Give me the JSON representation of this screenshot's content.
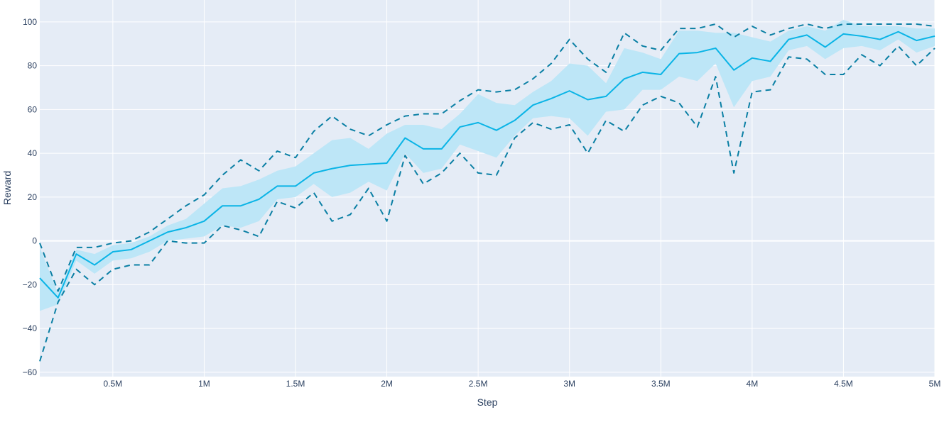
{
  "chart_data": {
    "type": "line",
    "title": "",
    "xlabel": "Step",
    "ylabel": "Reward",
    "xlim": [
      100000,
      5000000
    ],
    "ylim": [
      -62,
      110
    ],
    "grid": true,
    "x_ticks": [
      {
        "value": 500000,
        "label": "0.5M"
      },
      {
        "value": 1000000,
        "label": "1M"
      },
      {
        "value": 1500000,
        "label": "1.5M"
      },
      {
        "value": 2000000,
        "label": "2M"
      },
      {
        "value": 2500000,
        "label": "2.5M"
      },
      {
        "value": 3000000,
        "label": "3M"
      },
      {
        "value": 3500000,
        "label": "3.5M"
      },
      {
        "value": 4000000,
        "label": "4M"
      },
      {
        "value": 4500000,
        "label": "4.5M"
      },
      {
        "value": 5000000,
        "label": "5M"
      }
    ],
    "y_ticks": [
      {
        "value": 100,
        "label": "100"
      },
      {
        "value": 80,
        "label": "80"
      },
      {
        "value": 60,
        "label": "60"
      },
      {
        "value": 40,
        "label": "40"
      },
      {
        "value": 20,
        "label": "20"
      },
      {
        "value": 0,
        "label": "0"
      },
      {
        "value": -20,
        "label": "−20"
      },
      {
        "value": -40,
        "label": "−40"
      },
      {
        "value": -60,
        "label": "−60"
      }
    ],
    "x": [
      100000,
      200000,
      300000,
      400000,
      500000,
      600000,
      700000,
      800000,
      900000,
      1000000,
      1100000,
      1200000,
      1300000,
      1400000,
      1500000,
      1600000,
      1700000,
      1800000,
      1900000,
      2000000,
      2100000,
      2200000,
      2300000,
      2400000,
      2500000,
      2600000,
      2700000,
      2800000,
      2900000,
      3000000,
      3100000,
      3200000,
      3300000,
      3400000,
      3500000,
      3600000,
      3700000,
      3800000,
      3900000,
      4000000,
      4100000,
      4200000,
      4300000,
      4400000,
      4500000,
      4600000,
      4700000,
      4800000,
      4900000,
      5000000
    ],
    "series": [
      {
        "role": "mean",
        "style": "solid",
        "color": "#0ab4e6",
        "values": [
          -17,
          -26,
          -6,
          -11,
          -5,
          -4,
          0,
          4,
          6,
          9,
          16,
          16,
          19,
          25,
          25,
          31,
          33,
          34.5,
          35,
          35.5,
          47,
          42,
          42,
          52,
          54,
          50.5,
          55,
          62,
          65,
          68.5,
          64.5,
          66,
          74,
          77,
          76,
          85.5,
          86,
          88,
          78,
          83.5,
          82,
          92,
          94,
          88.5,
          94.5,
          93.5,
          92,
          95.5,
          91.5,
          93.5
        ]
      },
      {
        "role": "max",
        "style": "dash",
        "color": "#0a7fa4",
        "values": [
          -1,
          -23,
          -3,
          -3,
          -1,
          0,
          4,
          10,
          16,
          21,
          30,
          37,
          32,
          41,
          38,
          50,
          57,
          51,
          48,
          53,
          57,
          58,
          58,
          64,
          69,
          68,
          69,
          74,
          81,
          92,
          83,
          77,
          95,
          89,
          87,
          97,
          97,
          99,
          93,
          98,
          94,
          97,
          99,
          97,
          99,
          99,
          99,
          99,
          99,
          98
        ]
      },
      {
        "role": "min",
        "style": "dash",
        "color": "#0a7fa4",
        "values": [
          -55,
          -28,
          -13,
          -20,
          -13,
          -11,
          -11,
          0,
          -1,
          -1,
          7,
          5,
          2,
          18,
          15,
          22,
          9,
          12,
          24,
          9,
          39,
          26,
          31,
          40,
          31,
          30,
          47,
          54,
          51,
          53,
          40,
          55,
          50,
          62,
          66,
          63,
          52,
          75,
          31,
          68,
          69,
          84,
          83,
          76,
          76,
          85,
          80,
          89,
          80,
          88
        ]
      },
      {
        "role": "band-upper",
        "style": "fill",
        "color": "#bde6f7",
        "values": [
          -3,
          -24,
          -4,
          -6,
          -2,
          -1,
          2,
          7,
          10,
          17,
          24,
          25,
          28,
          32,
          34,
          40,
          46,
          47,
          42,
          49,
          53,
          53,
          51,
          58,
          67,
          63,
          62,
          68,
          73,
          81,
          80,
          72,
          88,
          86,
          83,
          96,
          96,
          95,
          95,
          93,
          91,
          96,
          98,
          96,
          101,
          98,
          98,
          98,
          97,
          97
        ]
      },
      {
        "role": "band-lower",
        "style": "fill",
        "color": "#bde6f7",
        "values": [
          -32,
          -29,
          -9,
          -15,
          -9,
          -8,
          -5,
          0,
          1,
          2,
          7,
          6,
          9,
          19,
          20,
          26,
          20,
          22,
          27,
          23,
          40,
          31,
          33,
          44,
          41,
          38,
          48,
          56,
          57,
          56,
          48,
          59,
          60,
          69,
          69,
          75,
          73,
          81,
          61,
          73,
          75,
          87,
          89,
          83,
          88,
          89,
          87,
          92,
          86,
          89
        ]
      }
    ]
  }
}
